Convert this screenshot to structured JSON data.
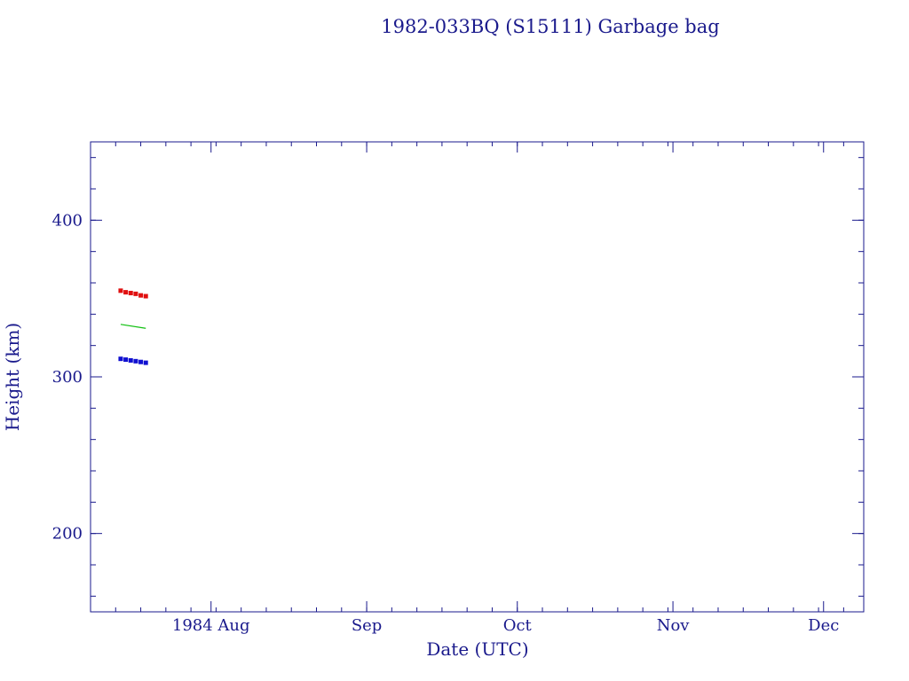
{
  "colors": {
    "axis": "#1a1a8c",
    "text": "#1a1a8c",
    "apogee": "#e01010",
    "mean": "#10c010",
    "perigee": "#1010d0",
    "background": "#ffffff"
  },
  "chart_data": {
    "type": "scatter",
    "title": "1982-033BQ (S15111) Garbage bag",
    "xlabel": "Date (UTC)",
    "ylabel": "Height (km)",
    "xlim": [
      "1984-07-08",
      "1984-12-09"
    ],
    "ylim": [
      150,
      450
    ],
    "grid": false,
    "x_ticks": [
      {
        "date": "1984-08-01",
        "label": "1984 Aug"
      },
      {
        "date": "1984-09-01",
        "label": "Sep"
      },
      {
        "date": "1984-10-01",
        "label": "Oct"
      },
      {
        "date": "1984-11-01",
        "label": "Nov"
      },
      {
        "date": "1984-12-01",
        "label": "Dec"
      }
    ],
    "y_ticks": [
      {
        "value": 200,
        "label": "200"
      },
      {
        "value": 300,
        "label": "300"
      },
      {
        "value": 400,
        "label": "400"
      }
    ],
    "series": [
      {
        "key": "apogee",
        "style": "markers",
        "x": [
          "1984-07-14",
          "1984-07-15",
          "1984-07-16",
          "1984-07-17",
          "1984-07-18",
          "1984-07-19"
        ],
        "y": [
          355,
          354,
          353.5,
          353,
          352,
          351.5
        ]
      },
      {
        "key": "mean",
        "style": "line",
        "x": [
          "1984-07-14",
          "1984-07-19"
        ],
        "y": [
          333.5,
          331
        ]
      },
      {
        "key": "perigee",
        "style": "markers",
        "x": [
          "1984-07-14",
          "1984-07-15",
          "1984-07-16",
          "1984-07-17",
          "1984-07-18",
          "1984-07-19"
        ],
        "y": [
          311.5,
          311,
          310.5,
          310,
          309.5,
          309
        ]
      }
    ]
  }
}
